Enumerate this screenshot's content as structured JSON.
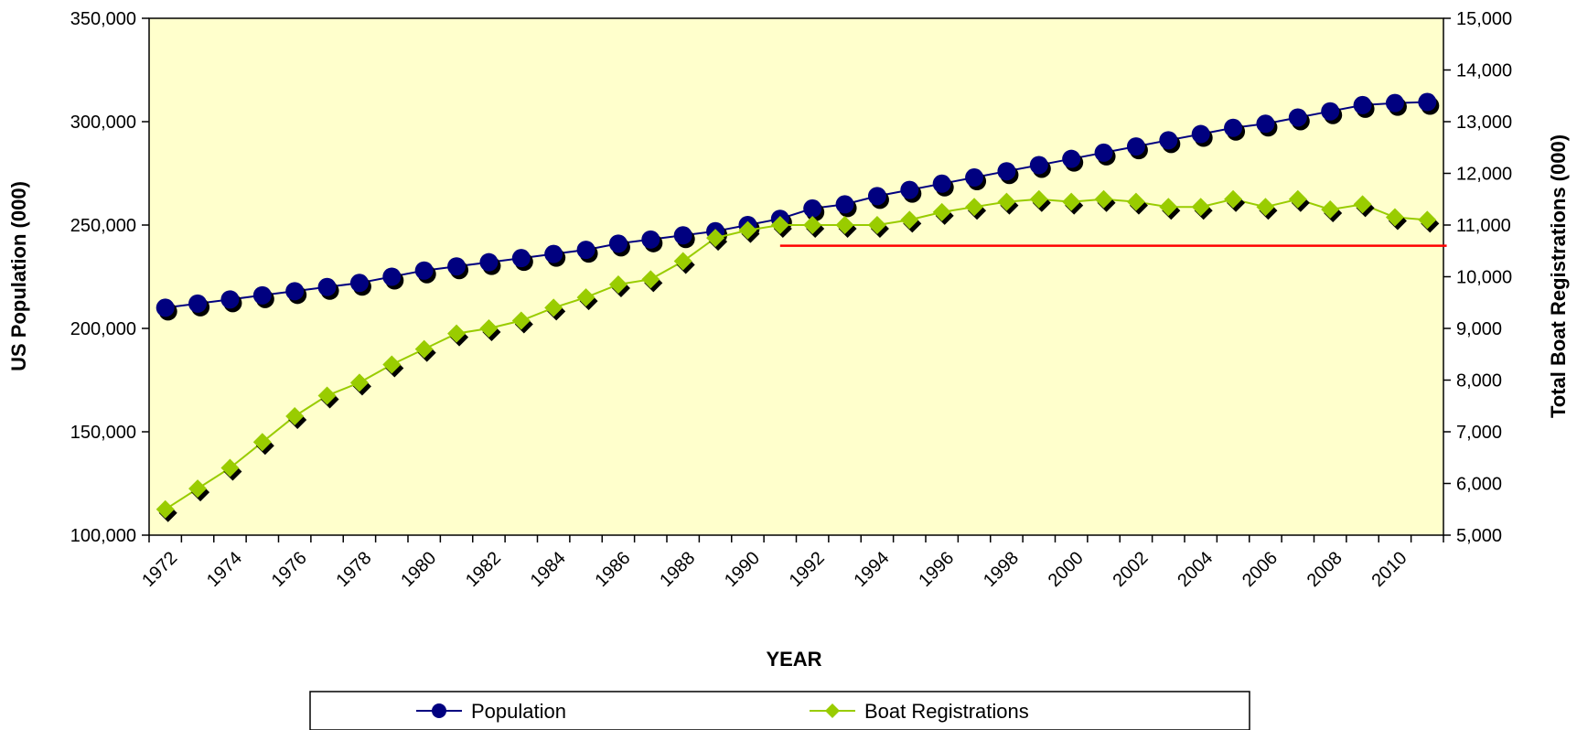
{
  "chart_data": {
    "type": "line",
    "title": "",
    "xlabel": "YEAR",
    "ylabel_left": "US Population (000)",
    "ylabel_right": "Total Boat Registrations (000)",
    "x": [
      1972,
      1973,
      1974,
      1975,
      1976,
      1977,
      1978,
      1979,
      1980,
      1981,
      1982,
      1983,
      1984,
      1985,
      1986,
      1987,
      1988,
      1989,
      1990,
      1991,
      1992,
      1993,
      1994,
      1995,
      1996,
      1997,
      1998,
      1999,
      2000,
      2001,
      2002,
      2003,
      2004,
      2005,
      2006,
      2007,
      2008,
      2009,
      2010,
      2011
    ],
    "x_ticks": [
      "1972",
      "1974",
      "1976",
      "1978",
      "1980",
      "1982",
      "1984",
      "1986",
      "1988",
      "1990",
      "1992",
      "1994",
      "1996",
      "1998",
      "2000",
      "2002",
      "2004",
      "2006",
      "2008",
      "2010"
    ],
    "ylim_left": [
      100000,
      350000
    ],
    "ylim_right": [
      5000,
      15000
    ],
    "y_ticks_left": [
      "100,000",
      "150,000",
      "200,000",
      "250,000",
      "300,000",
      "350,000"
    ],
    "y_ticks_right": [
      "5,000",
      "6,000",
      "7,000",
      "8,000",
      "9,000",
      "10,000",
      "11,000",
      "12,000",
      "13,000",
      "14,000",
      "15,000"
    ],
    "series": [
      {
        "name": "Population",
        "axis": "left",
        "color": "#000080",
        "marker": "circle",
        "values": [
          210000,
          212000,
          214000,
          216000,
          218000,
          220000,
          222000,
          225000,
          228000,
          230000,
          232000,
          234000,
          236000,
          238000,
          241000,
          243000,
          245000,
          247000,
          250000,
          253000,
          258000,
          260000,
          264000,
          267000,
          270000,
          273000,
          276000,
          279000,
          282000,
          285000,
          288000,
          291000,
          294000,
          297000,
          299000,
          302000,
          305000,
          308000,
          309000,
          309500
        ]
      },
      {
        "name": "Boat Registrations",
        "axis": "right",
        "color": "#99CC00",
        "marker": "diamond",
        "values": [
          5500,
          5900,
          6300,
          6800,
          7300,
          7700,
          7950,
          8300,
          8600,
          8900,
          9000,
          9150,
          9400,
          9600,
          9850,
          9950,
          10300,
          10750,
          10900,
          11000,
          11000,
          11000,
          11000,
          11100,
          11250,
          11350,
          11450,
          11500,
          11450,
          11500,
          11450,
          11350,
          11350,
          11500,
          11350,
          11500,
          11300,
          11400,
          11150,
          11100
        ]
      }
    ],
    "reference_line": {
      "axis": "right",
      "value": 10600,
      "from_x": 1991,
      "to_x": 2011.6,
      "color": "#FF0000"
    },
    "legend_position": "bottom",
    "plot_background": "#FFFFCC",
    "grid": false
  }
}
